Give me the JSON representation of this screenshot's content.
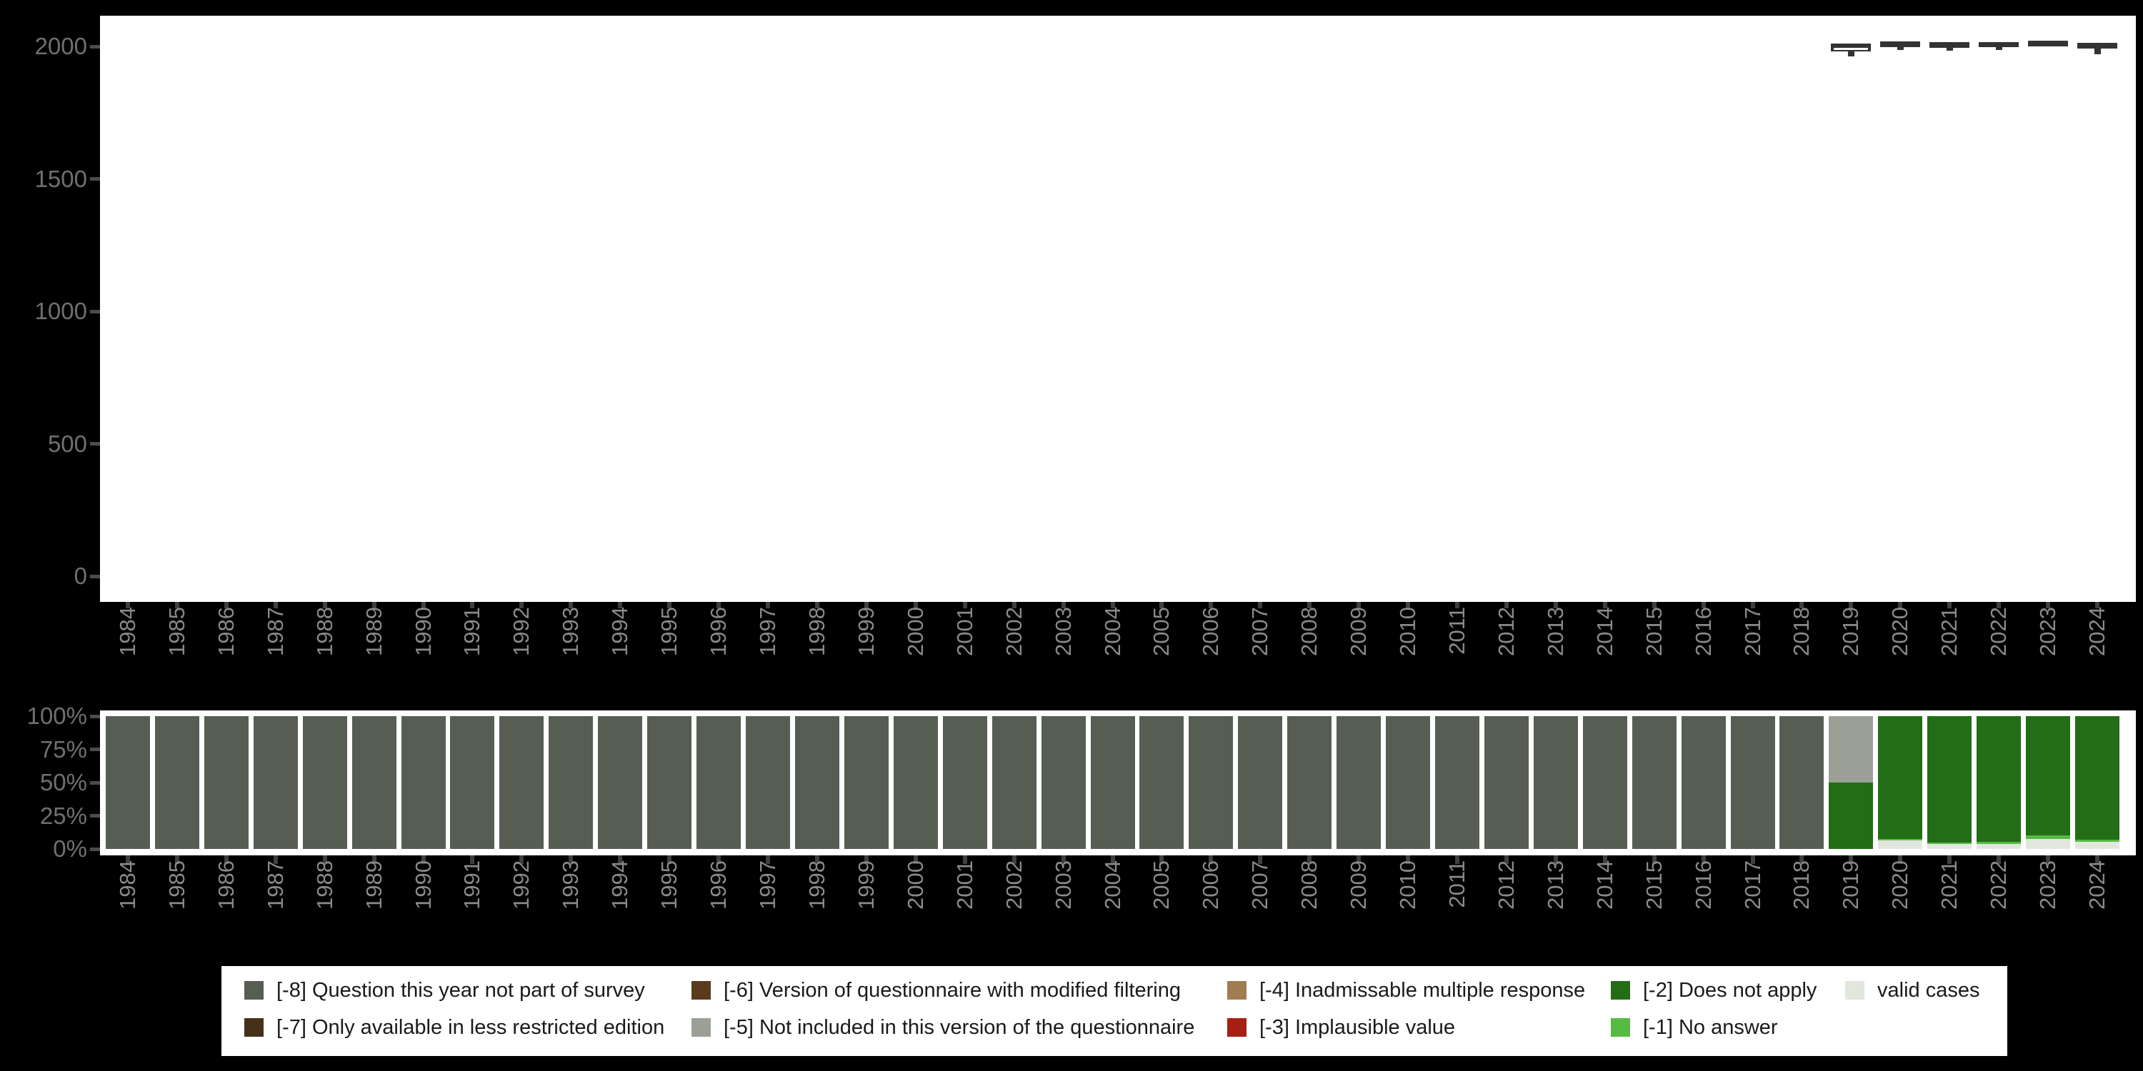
{
  "colors": {
    "background": "#000000",
    "panel": "#ffffff",
    "boxplot": "#333333",
    "median_line": "#ffffff",
    "axis_label": "#707070",
    "year_label": "#8a8a8a",
    "tick": "#4c4c4c",
    "codes": {
      "-8": "#565e53",
      "-7": "#47301a",
      "-6": "#5a3b1c",
      "-5": "#9aa096",
      "-4": "#a17c50",
      "-3": "#a51f13",
      "-2": "#226d15",
      "-1": "#55bb41",
      "valid": "#e2e7dd"
    }
  },
  "legend": {
    "items": [
      {
        "code": "-8",
        "label": "[-8] Question this year not part of survey",
        "row": 0,
        "col": 0
      },
      {
        "code": "-7",
        "label": "[-7] Only available in less restricted edition",
        "row": 1,
        "col": 0
      },
      {
        "code": "-6",
        "label": "[-6] Version of questionnaire with modified filtering",
        "row": 0,
        "col": 1
      },
      {
        "code": "-5",
        "label": "[-5] Not included in this version of the questionnaire",
        "row": 1,
        "col": 1
      },
      {
        "code": "-4",
        "label": "[-4] Inadmissable multiple response",
        "row": 0,
        "col": 2
      },
      {
        "code": "-3",
        "label": "[-3] Implausible value",
        "row": 1,
        "col": 2
      },
      {
        "code": "-2",
        "label": "[-2] Does not apply",
        "row": 0,
        "col": 3
      },
      {
        "code": "-1",
        "label": "[-1] No answer",
        "row": 1,
        "col": 3
      },
      {
        "code": "valid",
        "label": "valid cases",
        "row": 0,
        "col": 4
      }
    ]
  },
  "chart_data": [
    {
      "type": "boxplot",
      "title": "",
      "xlabel": "",
      "ylabel": "",
      "ylim": [
        0,
        2000
      ],
      "yticks": [
        2000,
        1500,
        1000,
        500,
        0
      ],
      "grid": false,
      "categories": [
        1984,
        1985,
        1986,
        1987,
        1988,
        1989,
        1990,
        1991,
        1992,
        1993,
        1994,
        1995,
        1996,
        1997,
        1998,
        1999,
        2000,
        2001,
        2002,
        2003,
        2004,
        2005,
        2006,
        2007,
        2008,
        2009,
        2010,
        2011,
        2012,
        2013,
        2014,
        2015,
        2016,
        2017,
        2018,
        2019,
        2020,
        2021,
        2022,
        2023,
        2024
      ],
      "boxes": [
        {
          "year": 2019,
          "q3": 2011,
          "median": 1991,
          "q1": 1981,
          "whisker_low": 1961,
          "whisker_high": null
        },
        {
          "year": 2020,
          "q3": 2019,
          "median": null,
          "q1": 1996,
          "whisker_low": 1987,
          "whisker_high": null
        },
        {
          "year": 2021,
          "q3": 2016,
          "median": null,
          "q1": 1994,
          "whisker_low": 1985,
          "whisker_high": null
        },
        {
          "year": 2022,
          "q3": 2016,
          "median": null,
          "q1": 1996,
          "whisker_low": 1987,
          "whisker_high": null
        },
        {
          "year": 2023,
          "q3": 2021,
          "median": null,
          "q1": 2001,
          "whisker_low": null,
          "whisker_high": null
        },
        {
          "year": 2024,
          "q3": 2014,
          "median": null,
          "q1": 1992,
          "whisker_low": 1971,
          "whisker_high": null
        }
      ]
    },
    {
      "type": "bar",
      "stacked": true,
      "percent": true,
      "title": "",
      "xlabel": "",
      "ylabel": "",
      "ytick_labels": [
        "100%",
        "75%",
        "50%",
        "25%",
        "0%"
      ],
      "ytick_values": [
        100,
        75,
        50,
        25,
        0
      ],
      "grid": false,
      "categories": [
        1984,
        1985,
        1986,
        1987,
        1988,
        1989,
        1990,
        1991,
        1992,
        1993,
        1994,
        1995,
        1996,
        1997,
        1998,
        1999,
        2000,
        2001,
        2002,
        2003,
        2004,
        2005,
        2006,
        2007,
        2008,
        2009,
        2010,
        2011,
        2012,
        2013,
        2014,
        2015,
        2016,
        2017,
        2018,
        2019,
        2020,
        2021,
        2022,
        2023,
        2024
      ],
      "bars": [
        {
          "year": 1984,
          "segments": [
            {
              "code": "-8",
              "pct": 100
            }
          ]
        },
        {
          "year": 1985,
          "segments": [
            {
              "code": "-8",
              "pct": 100
            }
          ]
        },
        {
          "year": 1986,
          "segments": [
            {
              "code": "-8",
              "pct": 100
            }
          ]
        },
        {
          "year": 1987,
          "segments": [
            {
              "code": "-8",
              "pct": 100
            }
          ]
        },
        {
          "year": 1988,
          "segments": [
            {
              "code": "-8",
              "pct": 100
            }
          ]
        },
        {
          "year": 1989,
          "segments": [
            {
              "code": "-8",
              "pct": 100
            }
          ]
        },
        {
          "year": 1990,
          "segments": [
            {
              "code": "-8",
              "pct": 100
            }
          ]
        },
        {
          "year": 1991,
          "segments": [
            {
              "code": "-8",
              "pct": 100
            }
          ]
        },
        {
          "year": 1992,
          "segments": [
            {
              "code": "-8",
              "pct": 100
            }
          ]
        },
        {
          "year": 1993,
          "segments": [
            {
              "code": "-8",
              "pct": 100
            }
          ]
        },
        {
          "year": 1994,
          "segments": [
            {
              "code": "-8",
              "pct": 100
            }
          ]
        },
        {
          "year": 1995,
          "segments": [
            {
              "code": "-8",
              "pct": 100
            }
          ]
        },
        {
          "year": 1996,
          "segments": [
            {
              "code": "-8",
              "pct": 100
            }
          ]
        },
        {
          "year": 1997,
          "segments": [
            {
              "code": "-8",
              "pct": 100
            }
          ]
        },
        {
          "year": 1998,
          "segments": [
            {
              "code": "-8",
              "pct": 100
            }
          ]
        },
        {
          "year": 1999,
          "segments": [
            {
              "code": "-8",
              "pct": 100
            }
          ]
        },
        {
          "year": 2000,
          "segments": [
            {
              "code": "-8",
              "pct": 100
            }
          ]
        },
        {
          "year": 2001,
          "segments": [
            {
              "code": "-8",
              "pct": 100
            }
          ]
        },
        {
          "year": 2002,
          "segments": [
            {
              "code": "-8",
              "pct": 100
            }
          ]
        },
        {
          "year": 2003,
          "segments": [
            {
              "code": "-8",
              "pct": 100
            }
          ]
        },
        {
          "year": 2004,
          "segments": [
            {
              "code": "-8",
              "pct": 100
            }
          ]
        },
        {
          "year": 2005,
          "segments": [
            {
              "code": "-8",
              "pct": 100
            }
          ]
        },
        {
          "year": 2006,
          "segments": [
            {
              "code": "-8",
              "pct": 100
            }
          ]
        },
        {
          "year": 2007,
          "segments": [
            {
              "code": "-8",
              "pct": 100
            }
          ]
        },
        {
          "year": 2008,
          "segments": [
            {
              "code": "-8",
              "pct": 100
            }
          ]
        },
        {
          "year": 2009,
          "segments": [
            {
              "code": "-8",
              "pct": 100
            }
          ]
        },
        {
          "year": 2010,
          "segments": [
            {
              "code": "-8",
              "pct": 100
            }
          ]
        },
        {
          "year": 2011,
          "segments": [
            {
              "code": "-8",
              "pct": 100
            }
          ]
        },
        {
          "year": 2012,
          "segments": [
            {
              "code": "-8",
              "pct": 100
            }
          ]
        },
        {
          "year": 2013,
          "segments": [
            {
              "code": "-8",
              "pct": 100
            }
          ]
        },
        {
          "year": 2014,
          "segments": [
            {
              "code": "-8",
              "pct": 100
            }
          ]
        },
        {
          "year": 2015,
          "segments": [
            {
              "code": "-8",
              "pct": 100
            }
          ]
        },
        {
          "year": 2016,
          "segments": [
            {
              "code": "-8",
              "pct": 100
            }
          ]
        },
        {
          "year": 2017,
          "segments": [
            {
              "code": "-8",
              "pct": 100
            }
          ]
        },
        {
          "year": 2018,
          "segments": [
            {
              "code": "-8",
              "pct": 100
            }
          ]
        },
        {
          "year": 2019,
          "segments": [
            {
              "code": "-5",
              "pct": 50
            },
            {
              "code": "-2",
              "pct": 50
            }
          ]
        },
        {
          "year": 2020,
          "segments": [
            {
              "code": "-2",
              "pct": 92.5
            },
            {
              "code": "-1",
              "pct": 1.2
            },
            {
              "code": "valid",
              "pct": 6.3
            }
          ]
        },
        {
          "year": 2021,
          "segments": [
            {
              "code": "-2",
              "pct": 95.0
            },
            {
              "code": "-1",
              "pct": 1.5
            },
            {
              "code": "valid",
              "pct": 3.5
            }
          ]
        },
        {
          "year": 2022,
          "segments": [
            {
              "code": "-2",
              "pct": 94.5
            },
            {
              "code": "-1",
              "pct": 1.5
            },
            {
              "code": "valid",
              "pct": 4.0
            }
          ]
        },
        {
          "year": 2023,
          "segments": [
            {
              "code": "-2",
              "pct": 90.0
            },
            {
              "code": "-1",
              "pct": 2.5
            },
            {
              "code": "valid",
              "pct": 7.5
            }
          ]
        },
        {
          "year": 2024,
          "segments": [
            {
              "code": "-2",
              "pct": 93.2
            },
            {
              "code": "-1",
              "pct": 1.6
            },
            {
              "code": "valid",
              "pct": 5.2
            }
          ]
        }
      ]
    }
  ]
}
